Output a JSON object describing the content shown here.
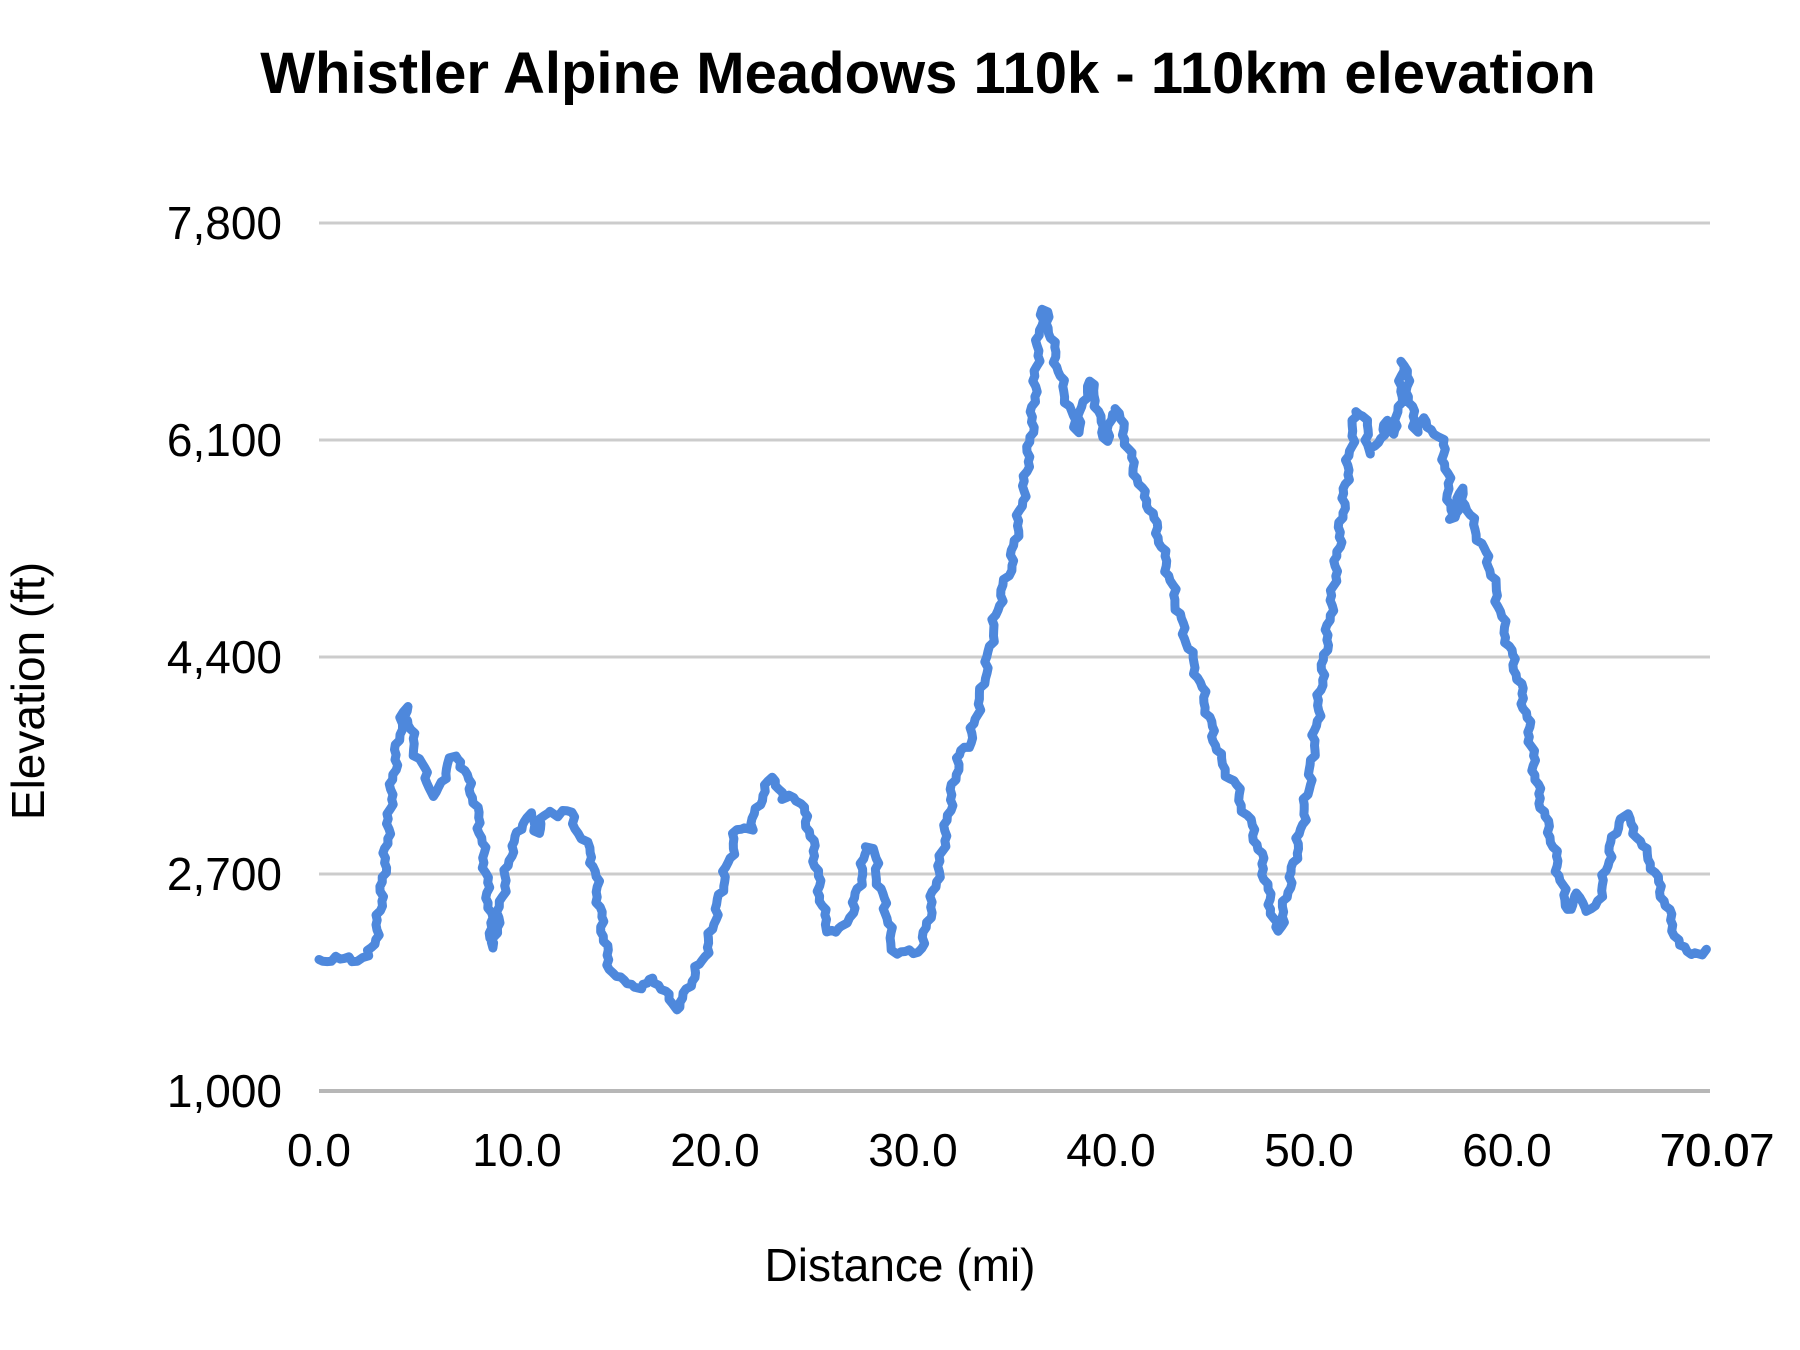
{
  "chart_data": {
    "type": "line",
    "title": "Whistler Alpine Meadows 110k - 110km elevation",
    "xlabel": "Distance (mi)",
    "ylabel": "Elevation (ft)",
    "xlim": [
      0,
      70.07
    ],
    "ylim": [
      1000,
      7800
    ],
    "grid": "horizontal",
    "legend": "none",
    "line_color": "#4e88dc",
    "gridline_color": "#cccccc",
    "axis_line_color": "#b7b7b7",
    "y_ticks": [
      {
        "value": 1000,
        "label": "1,000"
      },
      {
        "value": 2700,
        "label": "2,700"
      },
      {
        "value": 4400,
        "label": "4,400"
      },
      {
        "value": 6100,
        "label": "6,100"
      },
      {
        "value": 7800,
        "label": "7,800"
      }
    ],
    "x_ticks": [
      {
        "value": 0,
        "label": "0.0"
      },
      {
        "value": 10,
        "label": "10.0"
      },
      {
        "value": 20,
        "label": "20.0"
      },
      {
        "value": 30,
        "label": "30.0"
      },
      {
        "value": 40,
        "label": "40.0"
      },
      {
        "value": 50,
        "label": "50.0"
      },
      {
        "value": 60,
        "label": "60.0"
      },
      {
        "value": 70,
        "label": "70.0"
      },
      {
        "value": 70.07,
        "label": "70.07"
      }
    ],
    "series": [
      {
        "name": "elevation",
        "points": [
          [
            0,
            2030
          ],
          [
            0.4,
            2025
          ],
          [
            0.8,
            2040
          ],
          [
            1.1,
            2020
          ],
          [
            1.5,
            2042
          ],
          [
            1.9,
            2028
          ],
          [
            2.2,
            2048
          ],
          [
            2.5,
            2060
          ],
          [
            2.8,
            2150
          ],
          [
            3.1,
            2450
          ],
          [
            3.4,
            2900
          ],
          [
            3.7,
            3400
          ],
          [
            4.0,
            3750
          ],
          [
            4.2,
            3920
          ],
          [
            4.4,
            4010
          ],
          [
            4.6,
            3830
          ],
          [
            4.75,
            3760
          ],
          [
            4.9,
            3640
          ],
          [
            5.2,
            3560
          ],
          [
            5.5,
            3420
          ],
          [
            5.9,
            3300
          ],
          [
            6.2,
            3420
          ],
          [
            6.5,
            3560
          ],
          [
            6.9,
            3620
          ],
          [
            7.2,
            3580
          ],
          [
            7.5,
            3440
          ],
          [
            7.8,
            3300
          ],
          [
            8.1,
            3100
          ],
          [
            8.4,
            2750
          ],
          [
            8.8,
            2120
          ],
          [
            9.1,
            2400
          ],
          [
            9.4,
            2650
          ],
          [
            9.7,
            2880
          ],
          [
            10.0,
            2990
          ],
          [
            10.3,
            3120
          ],
          [
            10.6,
            3170
          ],
          [
            10.9,
            3080
          ],
          [
            11.1,
            3020
          ],
          [
            11.4,
            3160
          ],
          [
            11.7,
            3200
          ],
          [
            12.0,
            3170
          ],
          [
            12.3,
            3190
          ],
          [
            12.7,
            3180
          ],
          [
            13.0,
            3060
          ],
          [
            13.3,
            2980
          ],
          [
            13.6,
            2900
          ],
          [
            13.9,
            2760
          ],
          [
            14.2,
            2400
          ],
          [
            14.5,
            2100
          ],
          [
            14.8,
            1920
          ],
          [
            15.2,
            1870
          ],
          [
            15.6,
            1855
          ],
          [
            16.0,
            1830
          ],
          [
            16.3,
            1800
          ],
          [
            16.6,
            1840
          ],
          [
            16.9,
            1890
          ],
          [
            17.3,
            1800
          ],
          [
            17.7,
            1720
          ],
          [
            18.0,
            1650
          ],
          [
            18.3,
            1690
          ],
          [
            18.7,
            1830
          ],
          [
            19.1,
            1960
          ],
          [
            19.4,
            2020
          ],
          [
            19.8,
            2230
          ],
          [
            20.2,
            2500
          ],
          [
            20.6,
            2750
          ],
          [
            20.9,
            2900
          ],
          [
            21.1,
            3050
          ],
          [
            21.5,
            3070
          ],
          [
            21.8,
            3050
          ],
          [
            22.2,
            3250
          ],
          [
            22.5,
            3350
          ],
          [
            22.9,
            3460
          ],
          [
            23.2,
            3400
          ],
          [
            23.5,
            3270
          ],
          [
            23.8,
            3330
          ],
          [
            24.2,
            3280
          ],
          [
            24.6,
            3150
          ],
          [
            25.0,
            2880
          ],
          [
            25.4,
            2450
          ],
          [
            25.7,
            2270
          ],
          [
            26.1,
            2245
          ],
          [
            26.5,
            2280
          ],
          [
            26.9,
            2400
          ],
          [
            27.3,
            2620
          ],
          [
            27.7,
            2935
          ],
          [
            28.0,
            2900
          ],
          [
            28.3,
            2580
          ],
          [
            28.6,
            2470
          ],
          [
            28.9,
            2160
          ],
          [
            29.2,
            2075
          ],
          [
            29.6,
            2085
          ],
          [
            30.0,
            2080
          ],
          [
            30.4,
            2120
          ],
          [
            30.7,
            2280
          ],
          [
            31.0,
            2520
          ],
          [
            31.4,
            2800
          ],
          [
            31.7,
            3080
          ],
          [
            32.0,
            3360
          ],
          [
            32.3,
            3600
          ],
          [
            32.6,
            3690
          ],
          [
            32.9,
            3730
          ],
          [
            33.2,
            3950
          ],
          [
            33.5,
            4150
          ],
          [
            33.8,
            4400
          ],
          [
            34.1,
            4650
          ],
          [
            34.5,
            4920
          ],
          [
            34.9,
            5080
          ],
          [
            35.2,
            5350
          ],
          [
            35.6,
            5700
          ],
          [
            36.0,
            6200
          ],
          [
            36.3,
            6800
          ],
          [
            36.5,
            7120
          ],
          [
            36.7,
            7100
          ],
          [
            37.0,
            6900
          ],
          [
            37.4,
            6600
          ],
          [
            37.8,
            6400
          ],
          [
            38.1,
            6250
          ],
          [
            38.3,
            6160
          ],
          [
            38.6,
            6400
          ],
          [
            38.9,
            6560
          ],
          [
            39.2,
            6450
          ],
          [
            39.5,
            6200
          ],
          [
            39.8,
            6090
          ],
          [
            40.1,
            6300
          ],
          [
            40.3,
            6350
          ],
          [
            40.6,
            6180
          ],
          [
            41.0,
            5960
          ],
          [
            41.5,
            5720
          ],
          [
            42.0,
            5560
          ],
          [
            42.5,
            5300
          ],
          [
            43.0,
            5000
          ],
          [
            43.5,
            4700
          ],
          [
            44.0,
            4430
          ],
          [
            44.5,
            4200
          ],
          [
            45.0,
            3890
          ],
          [
            45.5,
            3600
          ],
          [
            45.9,
            3480
          ],
          [
            46.3,
            3400
          ],
          [
            46.7,
            3200
          ],
          [
            47.1,
            3080
          ],
          [
            47.6,
            2820
          ],
          [
            48.0,
            2500
          ],
          [
            48.3,
            2280
          ],
          [
            48.5,
            2250
          ],
          [
            48.8,
            2480
          ],
          [
            49.2,
            2750
          ],
          [
            49.6,
            3050
          ],
          [
            50.0,
            3400
          ],
          [
            50.4,
            3900
          ],
          [
            50.7,
            4300
          ],
          [
            51.0,
            4650
          ],
          [
            51.4,
            5150
          ],
          [
            51.8,
            5680
          ],
          [
            52.1,
            6050
          ],
          [
            52.4,
            6330
          ],
          [
            52.8,
            6290
          ],
          [
            53.1,
            5990
          ],
          [
            53.5,
            6080
          ],
          [
            53.9,
            6250
          ],
          [
            54.2,
            6150
          ],
          [
            54.5,
            6280
          ],
          [
            54.8,
            6720
          ],
          [
            55.1,
            6400
          ],
          [
            55.4,
            6170
          ],
          [
            55.7,
            6260
          ],
          [
            56.0,
            6210
          ],
          [
            56.4,
            6160
          ],
          [
            56.7,
            6100
          ],
          [
            57.0,
            5800
          ],
          [
            57.2,
            5470
          ],
          [
            57.5,
            5560
          ],
          [
            57.7,
            5720
          ],
          [
            58.0,
            5550
          ],
          [
            58.4,
            5400
          ],
          [
            58.8,
            5250
          ],
          [
            59.2,
            5080
          ],
          [
            59.6,
            4800
          ],
          [
            59.9,
            4590
          ],
          [
            60.3,
            4380
          ],
          [
            60.7,
            4150
          ],
          [
            61.1,
            3850
          ],
          [
            61.5,
            3400
          ],
          [
            61.9,
            3150
          ],
          [
            62.3,
            2950
          ],
          [
            62.7,
            2650
          ],
          [
            63.0,
            2460
          ],
          [
            63.3,
            2420
          ],
          [
            63.6,
            2560
          ],
          [
            63.9,
            2480
          ],
          [
            64.1,
            2390
          ],
          [
            64.5,
            2450
          ],
          [
            64.9,
            2650
          ],
          [
            65.3,
            2950
          ],
          [
            65.7,
            3140
          ],
          [
            66.0,
            3160
          ],
          [
            66.4,
            3060
          ],
          [
            66.8,
            2920
          ],
          [
            67.2,
            2820
          ],
          [
            67.7,
            2600
          ],
          [
            68.2,
            2380
          ],
          [
            68.7,
            2140
          ],
          [
            69.1,
            2085
          ],
          [
            69.5,
            2090
          ],
          [
            69.8,
            2080
          ],
          [
            70.07,
            2110
          ]
        ]
      }
    ]
  }
}
